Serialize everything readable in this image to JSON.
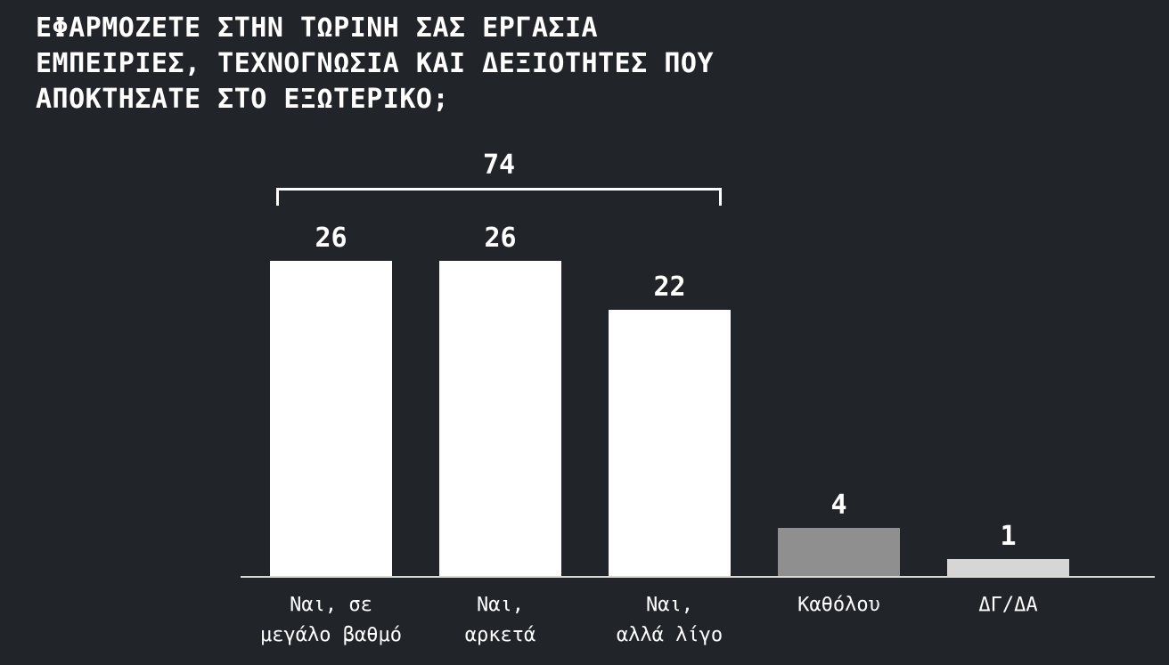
{
  "colors": {
    "background": "#21252a",
    "text": "#ffffff",
    "axis_line": "#d9d9d9"
  },
  "chart_data": {
    "type": "bar",
    "title": "ΕΦΑΡΜΟΖΕΤΕ ΣΤΗΝ ΤΩΡΙΝΗ ΣΑΣ ΕΡΓΑΣΙΑ\nΕΜΠΕΙΡΙΕΣ, ΤΕΧΝΟΓΝΩΣΙΑ ΚΑΙ ΔΕΞΙΟΤΗΤΕΣ ΠΟΥ\nΑΠΟΚΤΗΣΑΤΕ ΣΤΟ ΕΞΩΤΕΡΙΚΟ;",
    "categories": [
      "Ναι, σε\nμεγάλο βαθμό",
      "Ναι,\nαρκετά",
      "Ναι,\nαλλά λίγο",
      "Καθόλου",
      "ΔΓ/ΔΑ"
    ],
    "values": [
      26,
      26,
      22,
      4,
      1
    ],
    "bar_colors": [
      "#ffffff",
      "#ffffff",
      "#ffffff",
      "#8f8f8f",
      "#d6d6d6"
    ],
    "value_labels": [
      "26",
      "26",
      "22",
      "4",
      "1"
    ],
    "annotation": {
      "label": "74",
      "from_category_index": 0,
      "to_category_index": 2
    },
    "xlabel": "",
    "ylabel": "",
    "ylim": [
      0,
      30
    ],
    "grid": false,
    "legend": "none"
  }
}
